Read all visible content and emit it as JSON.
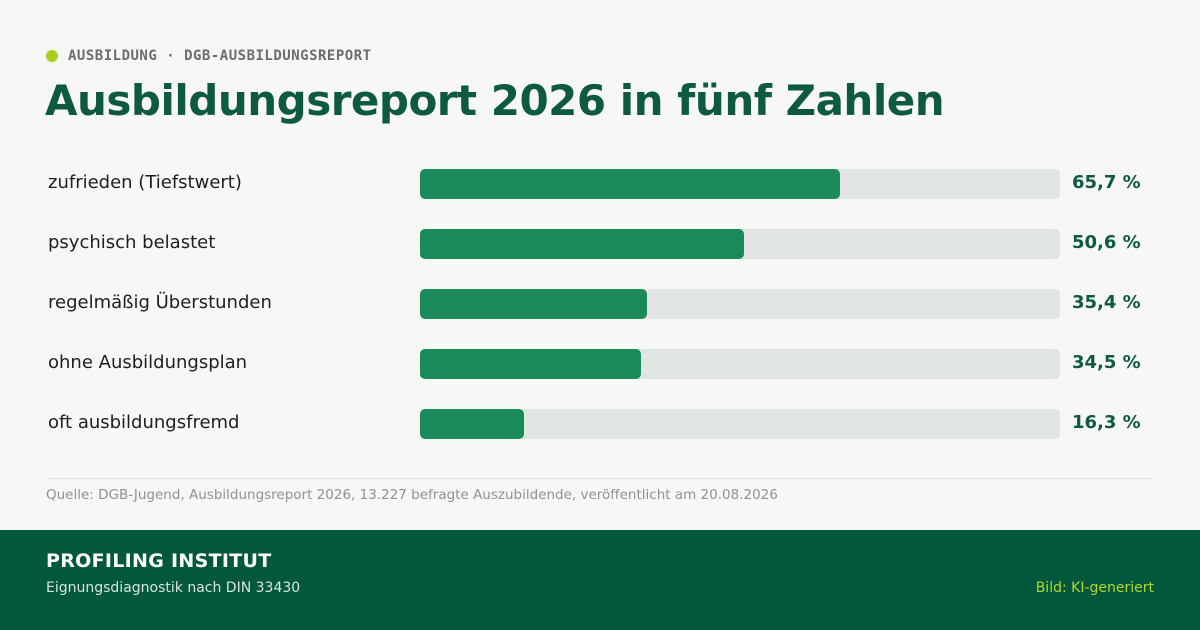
{
  "eyebrow": "AUSBILDUNG · DGB-AUSBILDUNGSREPORT",
  "title": "Ausbildungsreport 2026 in fünf Zahlen",
  "colors": {
    "accent": "#1a8a5a",
    "track": "#e2e6e2",
    "title": "#0d5a3e",
    "footer_bg": "#02583c",
    "eyebrow_dot": "#a9cf1f"
  },
  "chart_data": {
    "type": "bar",
    "orientation": "horizontal",
    "categories": [
      "zufrieden (Tiefstwert)",
      "psychisch belastet",
      "regelmäßig Überstunden",
      "ohne Ausbildungsplan",
      "oft ausbildungsfremd"
    ],
    "values": [
      65.7,
      50.6,
      35.4,
      34.5,
      16.3
    ],
    "value_labels": [
      "65,7 %",
      "50,6 %",
      "35,4 %",
      "34,5 %",
      "16,3 %"
    ],
    "xlim": [
      0,
      100
    ],
    "unit": "%",
    "title": "Ausbildungsreport 2026 in fünf Zahlen",
    "xlabel": "",
    "ylabel": "",
    "grid": false,
    "legend": "none"
  },
  "source": "Quelle: DGB-Jugend, Ausbildungsreport 2026, 13.227 befragte Auszubildende, veröffentlicht am 20.08.2026",
  "footer": {
    "brand": "PROFILING INSTITUT",
    "tagline": "Eignungsdiagnostik nach DIN 33430",
    "credit": "Bild: KI-generiert"
  }
}
